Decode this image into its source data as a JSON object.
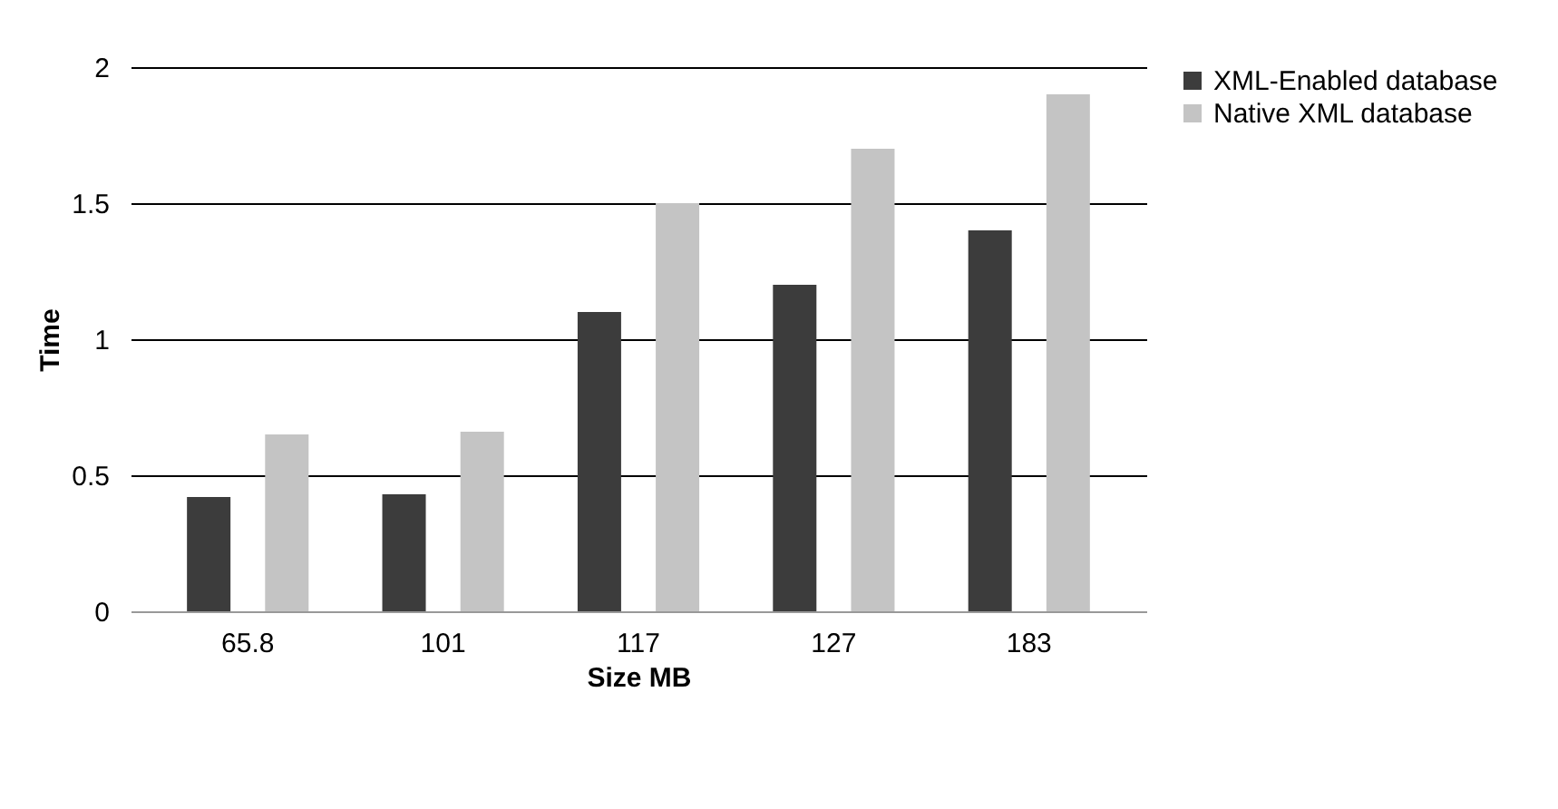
{
  "chart_data": {
    "type": "bar",
    "xlabel": "Size MB",
    "ylabel": "Time",
    "categories": [
      "65.8",
      "101",
      "117",
      "127",
      "183"
    ],
    "series": [
      {
        "name": "XML-Enabled database",
        "color": "#3c3c3c",
        "values": [
          0.42,
          0.43,
          1.1,
          1.2,
          1.4
        ]
      },
      {
        "name": "Native XML database",
        "color": "#c4c4c4",
        "values": [
          0.65,
          0.66,
          1.5,
          1.7,
          1.9
        ]
      }
    ],
    "ylim": [
      0,
      2
    ],
    "yticks": [
      0,
      0.5,
      1,
      1.5,
      2
    ],
    "grid": "y",
    "legend": "right"
  }
}
